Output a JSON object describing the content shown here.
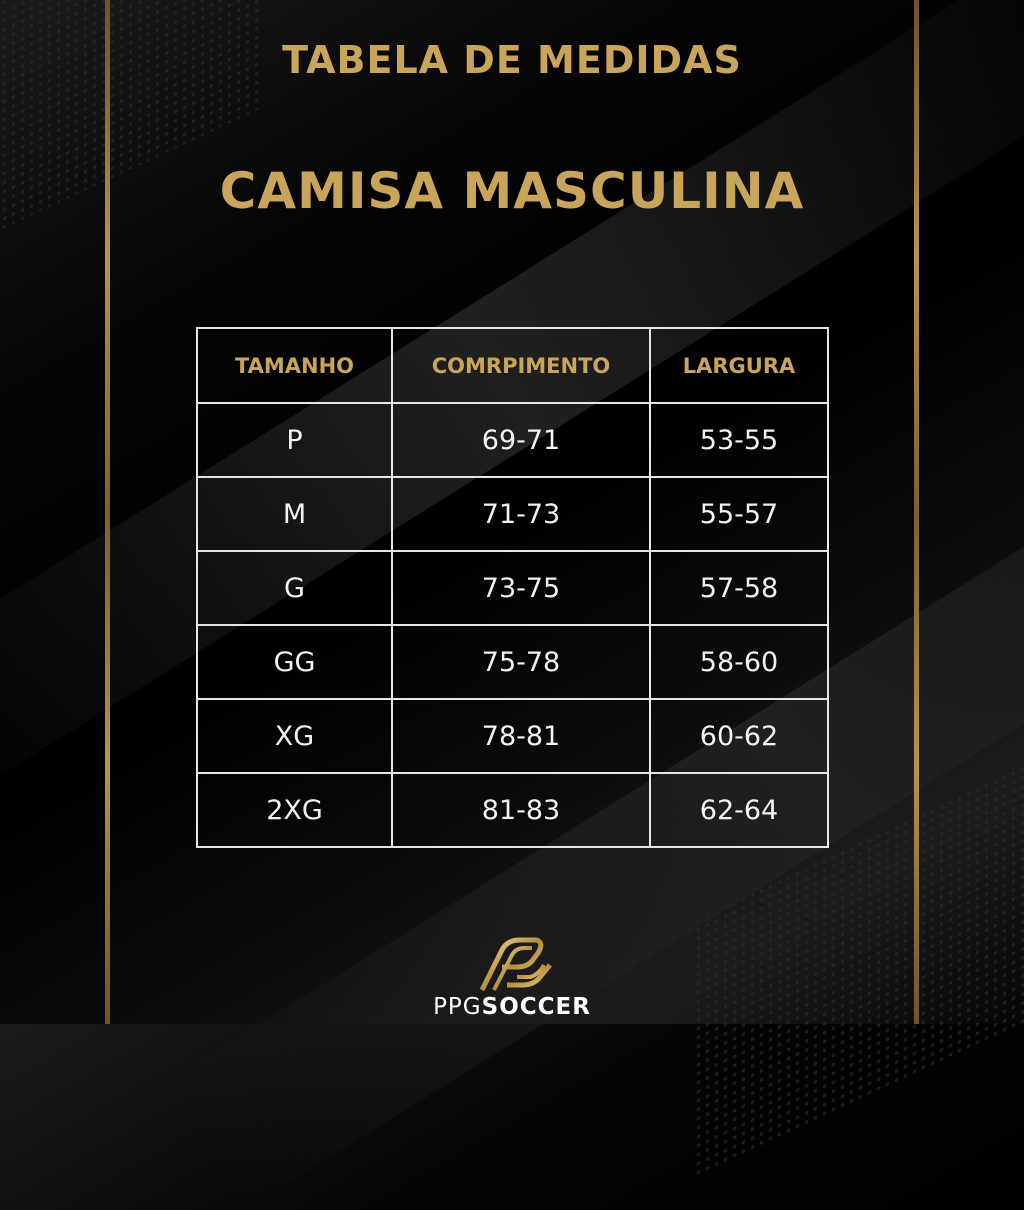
{
  "header": {
    "title": "TABELA DE MEDIDAS",
    "subtitle": "CAMISA MASCULINA"
  },
  "table": {
    "columns": [
      "TAMANHO",
      "COMRPIMENTO",
      "LARGURA"
    ],
    "rows": [
      [
        "P",
        "69-71",
        "53-55"
      ],
      [
        "M",
        "71-73",
        "55-57"
      ],
      [
        "G",
        "73-75",
        "57-58"
      ],
      [
        "GG",
        "75-78",
        "58-60"
      ],
      [
        "XG",
        "78-81",
        "60-62"
      ],
      [
        "2XG",
        "81-83",
        "62-64"
      ]
    ]
  },
  "brand": {
    "prefix": "PPG",
    "name": "SOCCER"
  },
  "colors": {
    "gold": "#c9a55a",
    "background": "#000000",
    "text": "#f2f2f2"
  }
}
